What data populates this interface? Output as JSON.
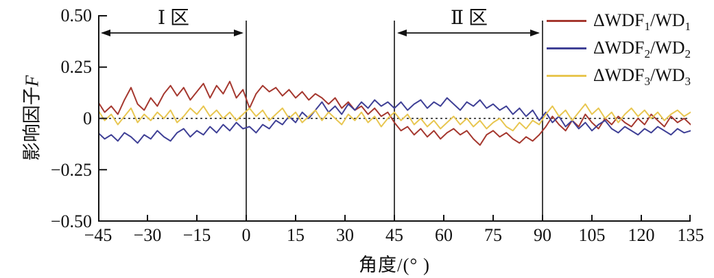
{
  "figure": {
    "y_axis_title_cn": "影响因子",
    "y_axis_title_var": "F",
    "x_axis_title": "角度/(° )",
    "y_tick_labels": [
      "0.50",
      "0.25",
      "0",
      "−0.25",
      "−0.50"
    ],
    "x_tick_labels": [
      "−45",
      "−30",
      "−15",
      "0",
      "15",
      "30",
      "45",
      "60",
      "75",
      "90",
      "105",
      "120",
      "135"
    ],
    "regions": [
      {
        "label": "Ⅰ 区"
      },
      {
        "label": "Ⅱ 区"
      }
    ]
  },
  "legend": {
    "items": [
      {
        "prefix": "ΔWDF",
        "sub1": "1",
        "mid": "/WD",
        "sub2": "1"
      },
      {
        "prefix": "ΔWDF",
        "sub1": "2",
        "mid": "/WD",
        "sub2": "2"
      },
      {
        "prefix": "ΔWDF",
        "sub1": "3",
        "mid": "/WD",
        "sub2": "3"
      }
    ]
  },
  "chart_data": {
    "type": "line",
    "title": "",
    "xlabel": "角度/(° )",
    "ylabel": "影响因子F",
    "xlim": [
      -45,
      135
    ],
    "ylim": [
      -0.5,
      0.5
    ],
    "x_tick_values": [
      -45,
      -30,
      -15,
      0,
      15,
      30,
      45,
      60,
      75,
      90,
      105,
      120,
      135
    ],
    "y_tick_values": [
      0.5,
      0.25,
      0,
      -0.25,
      -0.5
    ],
    "grid": false,
    "legend_position": "top-right",
    "zero_line": {
      "y": 0,
      "style": "dotted",
      "color": "#111111"
    },
    "vertical_lines_x": [
      0,
      45,
      90
    ],
    "regions": [
      {
        "label": "Ⅰ 区",
        "from": -45,
        "to": 0
      },
      {
        "label": "Ⅱ 区",
        "from": 45,
        "to": 90
      }
    ],
    "x": [
      -45,
      -43,
      -41,
      -39,
      -37,
      -35,
      -33,
      -31,
      -29,
      -27,
      -25,
      -23,
      -21,
      -19,
      -17,
      -15,
      -13,
      -11,
      -9,
      -7,
      -5,
      -3,
      -1,
      1,
      3,
      5,
      7,
      9,
      11,
      13,
      15,
      17,
      19,
      21,
      23,
      25,
      27,
      29,
      31,
      33,
      35,
      37,
      39,
      41,
      43,
      45,
      47,
      49,
      51,
      53,
      55,
      57,
      59,
      61,
      63,
      65,
      67,
      69,
      71,
      73,
      75,
      77,
      79,
      81,
      83,
      85,
      87,
      89,
      91,
      93,
      95,
      97,
      99,
      101,
      103,
      105,
      107,
      109,
      111,
      113,
      115,
      117,
      119,
      121,
      123,
      125,
      127,
      129,
      131,
      133,
      135
    ],
    "series": [
      {
        "name": "ΔWDF1/WD1",
        "color": "#A5382F",
        "values": [
          0.08,
          0.03,
          0.06,
          0.02,
          0.09,
          0.15,
          0.07,
          0.04,
          0.1,
          0.06,
          0.12,
          0.16,
          0.11,
          0.15,
          0.09,
          0.13,
          0.17,
          0.1,
          0.16,
          0.12,
          0.18,
          0.1,
          0.14,
          0.05,
          0.12,
          0.16,
          0.13,
          0.15,
          0.11,
          0.14,
          0.1,
          0.13,
          0.09,
          0.12,
          0.1,
          0.07,
          0.1,
          0.05,
          0.08,
          0.04,
          0.06,
          0.02,
          0.05,
          0.01,
          0.03,
          -0.02,
          -0.06,
          -0.04,
          -0.08,
          -0.05,
          -0.09,
          -0.06,
          -0.1,
          -0.07,
          -0.05,
          -0.08,
          -0.06,
          -0.1,
          -0.13,
          -0.08,
          -0.06,
          -0.09,
          -0.07,
          -0.1,
          -0.12,
          -0.09,
          -0.11,
          -0.08,
          -0.04,
          0.01,
          -0.03,
          -0.06,
          -0.01,
          -0.04,
          0.02,
          -0.02,
          -0.05,
          0.0,
          -0.03,
          0.01,
          -0.02,
          -0.04,
          0.0,
          -0.03,
          0.02,
          -0.01,
          -0.04,
          0.01,
          -0.02,
          0.0,
          -0.03
        ]
      },
      {
        "name": "ΔWDF2/WD2",
        "color": "#3F4096",
        "values": [
          -0.07,
          -0.1,
          -0.08,
          -0.11,
          -0.07,
          -0.09,
          -0.12,
          -0.08,
          -0.1,
          -0.06,
          -0.09,
          -0.11,
          -0.07,
          -0.05,
          -0.09,
          -0.06,
          -0.08,
          -0.04,
          -0.07,
          -0.03,
          -0.06,
          -0.02,
          -0.05,
          -0.04,
          -0.07,
          -0.03,
          -0.05,
          -0.01,
          -0.03,
          0.01,
          -0.02,
          0.03,
          0.0,
          0.04,
          0.08,
          0.03,
          0.06,
          0.02,
          0.07,
          0.04,
          0.08,
          0.05,
          0.09,
          0.06,
          0.08,
          0.05,
          0.08,
          0.04,
          0.07,
          0.09,
          0.05,
          0.08,
          0.06,
          0.1,
          0.07,
          0.04,
          0.08,
          0.06,
          0.09,
          0.05,
          0.07,
          0.04,
          0.06,
          0.02,
          0.05,
          0.01,
          0.04,
          -0.01,
          0.03,
          -0.02,
          0.01,
          -0.04,
          -0.01,
          -0.05,
          -0.02,
          -0.06,
          -0.03,
          -0.01,
          -0.05,
          -0.07,
          -0.04,
          -0.06,
          -0.08,
          -0.05,
          -0.07,
          -0.04,
          -0.06,
          -0.08,
          -0.05,
          -0.07,
          -0.06
        ]
      },
      {
        "name": "ΔWDF3/WD3",
        "color": "#E8C650",
        "values": [
          0.04,
          -0.01,
          0.02,
          -0.03,
          0.01,
          0.05,
          -0.02,
          0.02,
          -0.01,
          0.03,
          0.0,
          0.04,
          -0.02,
          0.01,
          0.05,
          0.02,
          0.06,
          0.01,
          0.04,
          0.0,
          0.03,
          -0.01,
          0.02,
          0.05,
          0.01,
          0.04,
          -0.01,
          0.02,
          0.05,
          0.0,
          0.03,
          -0.02,
          0.01,
          0.04,
          -0.01,
          0.03,
          0.0,
          -0.03,
          0.02,
          -0.01,
          0.03,
          -0.02,
          0.01,
          -0.04,
          0.0,
          0.03,
          -0.01,
          0.02,
          -0.03,
          0.0,
          -0.04,
          -0.01,
          -0.05,
          -0.02,
          0.01,
          -0.03,
          0.0,
          -0.04,
          -0.01,
          -0.05,
          -0.02,
          0.0,
          -0.04,
          -0.06,
          -0.02,
          -0.05,
          -0.01,
          -0.03,
          0.02,
          0.06,
          0.01,
          0.04,
          -0.01,
          0.03,
          0.07,
          0.02,
          0.05,
          0.0,
          0.03,
          -0.02,
          0.02,
          0.05,
          0.01,
          0.04,
          0.0,
          0.03,
          -0.01,
          0.02,
          0.04,
          0.01,
          0.03
        ]
      }
    ]
  }
}
